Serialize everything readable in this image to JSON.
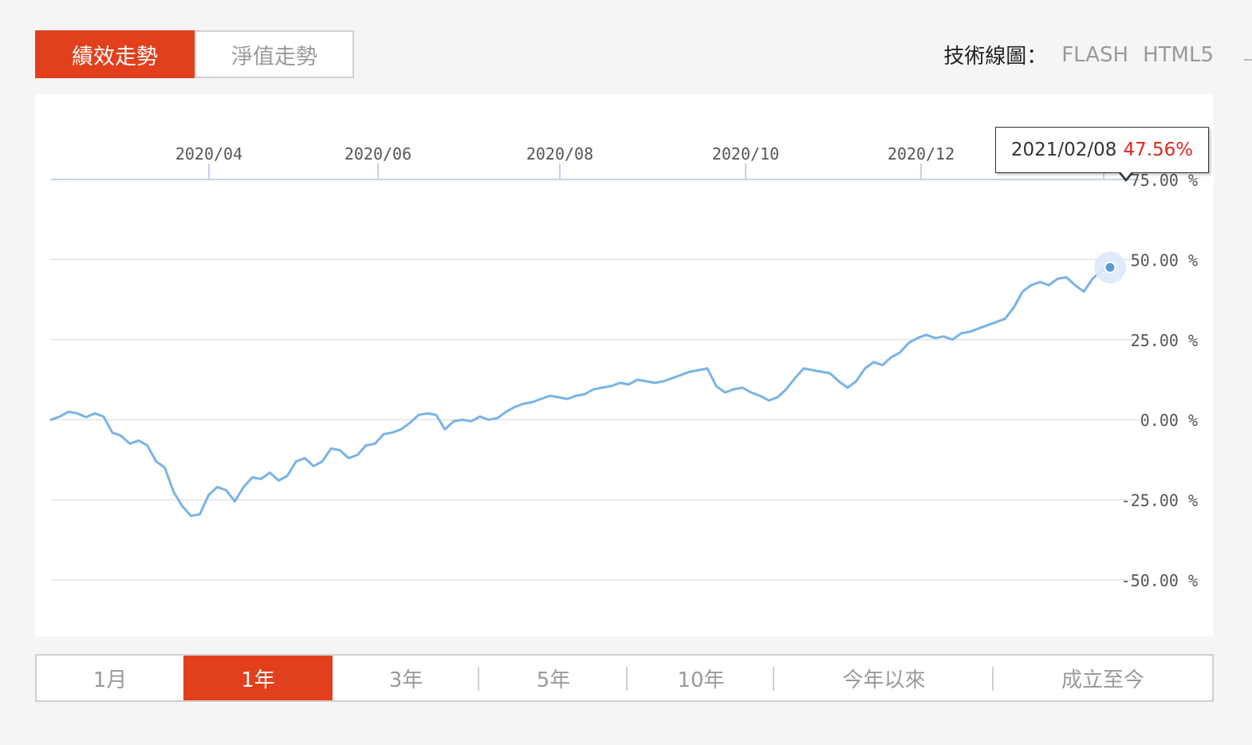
{
  "tabs": [
    {
      "label": "績效走勢",
      "active": true
    },
    {
      "label": "淨值走勢",
      "active": false
    }
  ],
  "tech": {
    "label": "技術線圖：",
    "options": [
      "FLASH",
      "HTML5"
    ]
  },
  "ranges": [
    {
      "label": "1月",
      "active": false
    },
    {
      "label": "1年",
      "active": true
    },
    {
      "label": "3年",
      "active": false
    },
    {
      "label": "5年",
      "active": false
    },
    {
      "label": "10年",
      "active": false
    },
    {
      "label": "今年以來",
      "active": false
    },
    {
      "label": "成立至今",
      "active": false
    }
  ],
  "tooltip": {
    "date": "2021/02/08",
    "value": "47.56%"
  },
  "colors": {
    "accent": "#e2401c",
    "line": "#7ab3e6",
    "tooltip_value": "#e0281e"
  },
  "chart_data": {
    "type": "line",
    "x_tick_labels": [
      "2020/04",
      "2020/06",
      "2020/08",
      "2020/10",
      "2020/12"
    ],
    "y_tick_labels": [
      "75.00 %",
      "50.00 %",
      "25.00 %",
      "0.00 %",
      "-25.00 %",
      "-50.00 %"
    ],
    "y_ticks": [
      75,
      50,
      25,
      0,
      -25,
      -50
    ],
    "ylim": [
      -50,
      75
    ],
    "grid": true,
    "series": [
      {
        "values": [
          0.0,
          1.0,
          2.5,
          2.0,
          0.8,
          2.0,
          1.0,
          -4.0,
          -5.0,
          -7.5,
          -6.5,
          -8.0,
          -13.0,
          -15.0,
          -22.5,
          -27.0,
          -30.0,
          -29.5,
          -23.5,
          -21.0,
          -22.0,
          -25.5,
          -21.0,
          -18.0,
          -18.5,
          -16.5,
          -19.0,
          -17.5,
          -13.0,
          -12.0,
          -14.5,
          -13.0,
          -9.0,
          -9.5,
          -12.0,
          -11.0,
          -8.0,
          -7.5,
          -4.5,
          -4.0,
          -3.0,
          -1.0,
          1.5,
          2.0,
          1.5,
          -3.0,
          -0.5,
          0.0,
          -0.5,
          1.0,
          0.0,
          0.5,
          2.5,
          4.0,
          5.0,
          5.5,
          6.5,
          7.5,
          7.0,
          6.5,
          7.5,
          8.0,
          9.5,
          10.0,
          10.5,
          11.5,
          11.0,
          12.5,
          12.0,
          11.5,
          12.0,
          13.0,
          14.0,
          15.0,
          15.5,
          16.0,
          10.5,
          8.5,
          9.5,
          10.0,
          8.5,
          7.5,
          6.0,
          7.0,
          9.5,
          13.0,
          16.0,
          15.5,
          15.0,
          14.5,
          12.0,
          10.0,
          12.0,
          16.0,
          18.0,
          17.0,
          19.5,
          21.0,
          24.0,
          25.5,
          26.5,
          25.5,
          26.0,
          25.0,
          27.0,
          27.5,
          28.5,
          29.5,
          30.5,
          31.5,
          35.0,
          40.0,
          42.0,
          43.0,
          42.0,
          44.0,
          44.5,
          42.0,
          40.0,
          44.0,
          46.5,
          47.56
        ]
      }
    ]
  }
}
